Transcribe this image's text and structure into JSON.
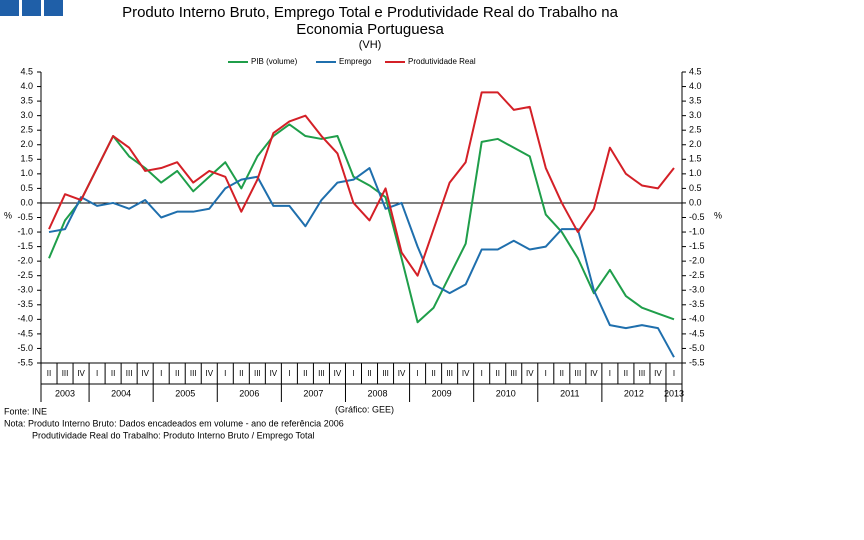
{
  "chart_data": {
    "type": "line",
    "title": "Produto Interno Bruto, Emprego Total e Produtividade Real do Trabalho na Economia Portuguesa",
    "subtitle": "(VH)",
    "ylabel": "%",
    "y2label": "%",
    "categories": [
      "II",
      "III",
      "IV",
      "I",
      "II",
      "III",
      "IV",
      "I",
      "II",
      "III",
      "IV",
      "I",
      "II",
      "III",
      "IV",
      "I",
      "II",
      "III",
      "IV",
      "I",
      "II",
      "III",
      "IV",
      "I",
      "II",
      "III",
      "IV",
      "I",
      "II",
      "III",
      "IV",
      "I",
      "II",
      "III",
      "IV",
      "I",
      "II",
      "III",
      "IV",
      "I"
    ],
    "years": [
      "2003",
      "2004",
      "2005",
      "2006",
      "2007",
      "2008",
      "2009",
      "2010",
      "2011",
      "2012",
      "2013"
    ],
    "series": [
      {
        "name": "PIB (volume)",
        "color": "#1f9e4a",
        "values": [
          -1.9,
          -0.6,
          0.1,
          1.2,
          2.3,
          1.6,
          1.2,
          0.7,
          1.1,
          0.4,
          0.9,
          1.4,
          0.5,
          1.6,
          2.3,
          2.7,
          2.3,
          2.2,
          2.3,
          0.9,
          0.6,
          0.2,
          -1.9,
          -4.1,
          -3.6,
          -2.5,
          -1.4,
          2.1,
          2.2,
          1.9,
          1.6,
          -0.4,
          -1.0,
          -1.9,
          -3.1,
          -2.3,
          -3.2,
          -3.6,
          -3.8,
          -4.0
        ]
      },
      {
        "name": "Emprego",
        "color": "#1f6fad",
        "values": [
          -1.0,
          -0.9,
          0.2,
          -0.1,
          0.0,
          -0.2,
          0.1,
          -0.5,
          -0.3,
          -0.3,
          -0.2,
          0.5,
          0.8,
          0.9,
          -0.1,
          -0.1,
          -0.8,
          0.1,
          0.7,
          0.8,
          1.2,
          -0.2,
          0.0,
          -1.5,
          -2.8,
          -3.1,
          -2.8,
          -1.6,
          -1.6,
          -1.3,
          -1.6,
          -1.5,
          -0.9,
          -0.9,
          -3.0,
          -4.2,
          -4.3,
          -4.2,
          -4.3,
          -5.3
        ]
      },
      {
        "name": "Produtividade Real",
        "color": "#d42027",
        "values": [
          -0.9,
          0.3,
          0.1,
          1.2,
          2.3,
          1.9,
          1.1,
          1.2,
          1.4,
          0.7,
          1.1,
          0.9,
          -0.3,
          0.8,
          2.4,
          2.8,
          3.0,
          2.3,
          1.7,
          0.0,
          -0.6,
          0.5,
          -1.7,
          -2.5,
          -0.9,
          0.7,
          1.4,
          3.8,
          3.8,
          3.2,
          3.3,
          1.2,
          0.0,
          -1.0,
          -0.2,
          1.9,
          1.0,
          0.6,
          0.5,
          1.2
        ]
      }
    ],
    "ylim": [
      -5.5,
      4.5
    ],
    "yticks": [
      4.5,
      {
        "value": 4,
        "label": "4.0"
      },
      3.5,
      {
        "value": 3,
        "label": "3.0"
      },
      2.5,
      {
        "value": 2,
        "label": "2.0"
      },
      1.5,
      {
        "value": 1,
        "label": "1.0"
      },
      0.5,
      {
        "value": 0,
        "label": "0.0"
      },
      -0.5,
      {
        "value": -1,
        "label": "-1.0"
      },
      -1.5,
      {
        "value": -2,
        "label": "-2.0"
      },
      -2.5,
      {
        "value": -3,
        "label": "-3.0"
      },
      -3.5,
      {
        "value": -4,
        "label": "-4.0"
      },
      -4.5,
      {
        "value": -5,
        "label": "-5.0"
      },
      -5.5
    ],
    "y2lim": [
      -5.5,
      4.5
    ],
    "y2ticks": [
      4.5,
      {
        "value": 4,
        "label": "4.0"
      },
      3.5,
      {
        "value": 3,
        "label": "3.0"
      },
      2.5,
      {
        "value": 2,
        "label": "2.0"
      },
      1.5,
      {
        "value": 1,
        "label": "1.0"
      },
      0.5,
      {
        "value": 0,
        "label": "0.0"
      },
      -0.5,
      {
        "value": -1,
        "label": "-1.0"
      },
      -1.5,
      {
        "value": -2,
        "label": "-2.0"
      },
      -2.5,
      {
        "value": -3,
        "label": "-3.0"
      },
      -3.5,
      {
        "value": -4,
        "label": "-4.0"
      },
      -4.5,
      {
        "value": -5,
        "label": "-5.0"
      },
      -5.5
    ],
    "grid": false,
    "legend": "top",
    "source": "Fonte: INE",
    "credit": "(Gráfico: GEE)",
    "notes": [
      "Nota: Produto Interno Bruto: Dados encadeados em volume - ano de referência 2006",
      "Produtividade Real do Trabalho: Produto Interno Bruto / Emprego Total"
    ]
  }
}
